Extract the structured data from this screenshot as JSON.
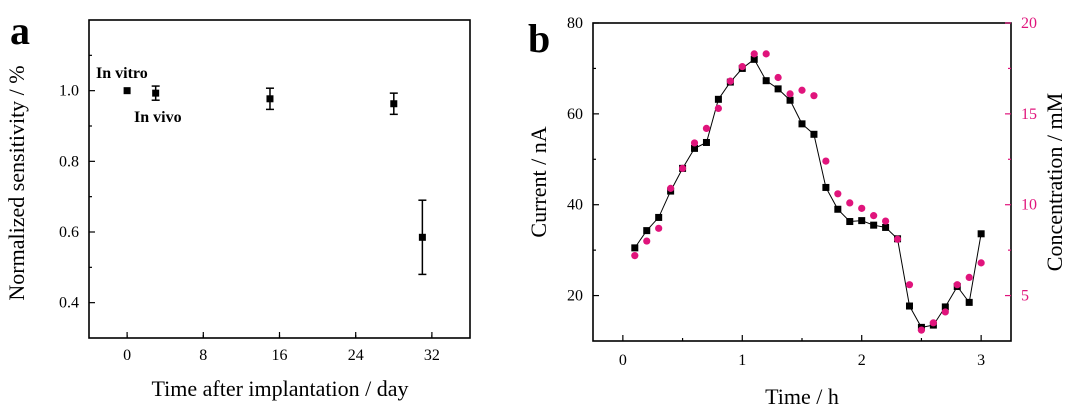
{
  "chart_data": [
    {
      "panel_label": "a",
      "type": "scatter",
      "xlabel": "Time after implantation / day",
      "ylabel": "Normalized sensitivity / %",
      "xlim": [
        -4,
        36
      ],
      "ylim": [
        0.3,
        1.2
      ],
      "xticks": [
        0,
        8,
        16,
        24,
        32
      ],
      "yticks": [
        0.4,
        0.6,
        0.8,
        1.0
      ],
      "tick_labels_x": [
        "0",
        "8",
        "16",
        "24",
        "32"
      ],
      "tick_labels_y": [
        "0.4",
        "0.6",
        "0.8",
        "1.0"
      ],
      "points": [
        {
          "x": 0,
          "y": 1.0,
          "err": 0.0
        },
        {
          "x": 3,
          "y": 0.993,
          "err": 0.02
        },
        {
          "x": 15,
          "y": 0.977,
          "err": 0.03
        },
        {
          "x": 28,
          "y": 0.963,
          "err": 0.03
        },
        {
          "x": 31,
          "y": 0.585,
          "err": 0.105
        }
      ],
      "annotations": [
        "In vitro",
        "In vivo"
      ],
      "color": "#000000"
    },
    {
      "panel_label": "b",
      "type": "line",
      "xlabel": "Time / h",
      "ylabel": "Current / nA",
      "ylabel_right": "Concentration / mM",
      "xlim": [
        -0.25,
        3.25
      ],
      "ylim": [
        10,
        80
      ],
      "ylim_right": [
        2.5,
        20
      ],
      "xticks": [
        0,
        1,
        2,
        3
      ],
      "yticks": [
        20,
        40,
        60,
        80
      ],
      "yticks_right": [
        5,
        10,
        15,
        20
      ],
      "tick_labels_x": [
        "0",
        "1",
        "2",
        "3"
      ],
      "tick_labels_y": [
        "20",
        "40",
        "60",
        "80"
      ],
      "tick_labels_y_right": [
        "5",
        "10",
        "15",
        "20"
      ],
      "series": [
        {
          "axis": "left",
          "color": "#000000",
          "marker": "square",
          "x": [
            0.1,
            0.2,
            0.3,
            0.4,
            0.5,
            0.6,
            0.7,
            0.8,
            0.9,
            1.0,
            1.1,
            1.2,
            1.3,
            1.4,
            1.5,
            1.6,
            1.7,
            1.8,
            1.9,
            2.0,
            2.1,
            2.2,
            2.3,
            2.4,
            2.5,
            2.6,
            2.7,
            2.8,
            2.9,
            3.0
          ],
          "y": [
            30.5,
            34.3,
            37.2,
            43,
            48,
            52.4,
            53.7,
            63.2,
            67,
            70,
            72,
            67.3,
            65.5,
            63,
            57.8,
            55.5,
            43.8,
            39,
            36.3,
            36.5,
            35.5,
            35,
            32.5,
            17.7,
            13,
            13.5,
            17.5,
            22,
            18.5,
            33.6
          ]
        },
        {
          "axis": "right",
          "color": "#e0147c",
          "marker": "circle",
          "x": [
            0.1,
            0.2,
            0.3,
            0.4,
            0.5,
            0.6,
            0.7,
            0.8,
            0.9,
            1.0,
            1.1,
            1.2,
            1.3,
            1.4,
            1.5,
            1.6,
            1.7,
            1.8,
            1.9,
            2.0,
            2.1,
            2.2,
            2.3,
            2.4,
            2.5,
            2.6,
            2.7,
            2.8,
            2.9,
            3.0
          ],
          "y": [
            7.2,
            8.0,
            8.7,
            10.9,
            12.0,
            13.4,
            14.2,
            15.3,
            16.8,
            17.6,
            18.3,
            18.3,
            17.0,
            16.1,
            16.3,
            16.0,
            12.4,
            10.6,
            10.1,
            9.8,
            9.4,
            9.1,
            8.1,
            5.6,
            3.1,
            3.5,
            4.1,
            5.6,
            6.0,
            6.8
          ]
        }
      ]
    }
  ]
}
